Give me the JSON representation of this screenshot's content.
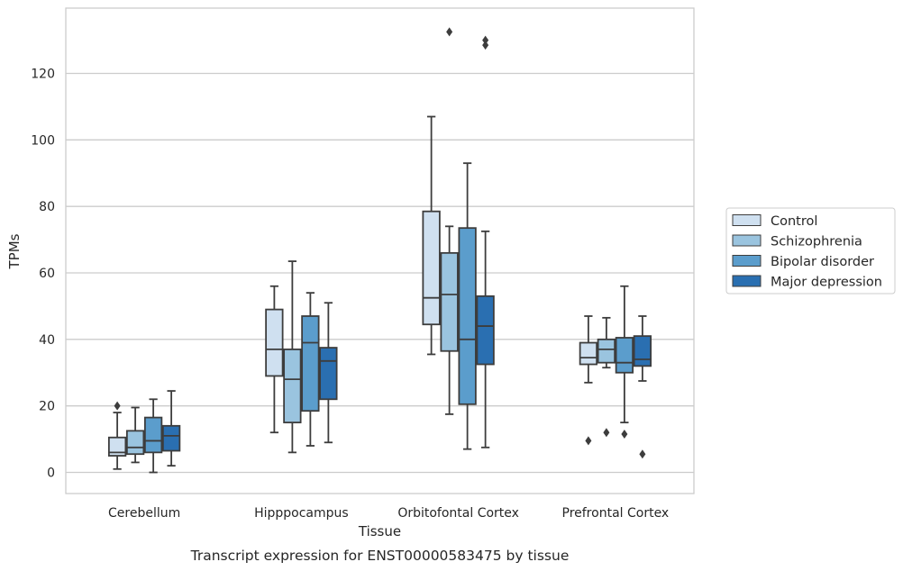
{
  "chart_data": {
    "type": "boxplot",
    "title": "",
    "xlabel": "Tissue",
    "ylabel": "TPMs",
    "caption": "Transcript expression for ENST00000583475 by tissue",
    "ylim": [
      -6.5,
      139
    ],
    "yticks": [
      0,
      20,
      40,
      60,
      80,
      100,
      120
    ],
    "grid": "horizontal",
    "legend_position": "right",
    "categories": [
      "Cerebellum",
      "Hipppocampus",
      "Orbitofontal Cortex",
      "Prefrontal Cortex"
    ],
    "series": [
      {
        "name": "Control",
        "color": "#cfe0f0",
        "boxes": [
          {
            "whislo": 1,
            "q1": 5,
            "med": 6,
            "q3": 10.5,
            "whishi": 18,
            "fliers": [
              20
            ]
          },
          {
            "whislo": 12,
            "q1": 29,
            "med": 37,
            "q3": 49,
            "whishi": 56,
            "fliers": []
          },
          {
            "whislo": 35.5,
            "q1": 44.5,
            "med": 52.5,
            "q3": 78.5,
            "whishi": 107,
            "fliers": []
          },
          {
            "whislo": 27,
            "q1": 32.5,
            "med": 34.5,
            "q3": 39,
            "whishi": 47,
            "fliers": [
              9.5
            ]
          }
        ]
      },
      {
        "name": "Schizophrenia",
        "color": "#9ac4df",
        "boxes": [
          {
            "whislo": 3,
            "q1": 5.5,
            "med": 7.5,
            "q3": 12.5,
            "whishi": 19.5,
            "fliers": []
          },
          {
            "whislo": 6,
            "q1": 15,
            "med": 28,
            "q3": 37,
            "whishi": 63.5,
            "fliers": []
          },
          {
            "whislo": 17.5,
            "q1": 36.5,
            "med": 53.5,
            "q3": 66,
            "whishi": 74,
            "fliers": [
              132.5
            ]
          },
          {
            "whislo": 31.5,
            "q1": 33,
            "med": 37,
            "q3": 40,
            "whishi": 46.5,
            "fliers": [
              12
            ]
          }
        ]
      },
      {
        "name": "Bipolar disorder",
        "color": "#5b9dcc",
        "boxes": [
          {
            "whislo": 0,
            "q1": 6,
            "med": 9.5,
            "q3": 16.5,
            "whishi": 22,
            "fliers": []
          },
          {
            "whislo": 8,
            "q1": 18.5,
            "med": 39,
            "q3": 47,
            "whishi": 54,
            "fliers": []
          },
          {
            "whislo": 7,
            "q1": 20.5,
            "med": 40,
            "q3": 73.5,
            "whishi": 93,
            "fliers": []
          },
          {
            "whislo": 15,
            "q1": 30,
            "med": 33,
            "q3": 40.5,
            "whishi": 56,
            "fliers": [
              11.5
            ]
          }
        ]
      },
      {
        "name": "Major depression",
        "color": "#2a6fb1",
        "boxes": [
          {
            "whislo": 2,
            "q1": 6.5,
            "med": 11,
            "q3": 14,
            "whishi": 24.5,
            "fliers": []
          },
          {
            "whislo": 9,
            "q1": 22,
            "med": 33.5,
            "q3": 37.5,
            "whishi": 51,
            "fliers": []
          },
          {
            "whislo": 7.5,
            "q1": 32.5,
            "med": 44,
            "q3": 53,
            "whishi": 72.5,
            "fliers": [
              128.5,
              130
            ]
          },
          {
            "whislo": 27.5,
            "q1": 32,
            "med": 34,
            "q3": 41,
            "whishi": 47,
            "fliers": [
              5.5
            ]
          }
        ]
      }
    ]
  }
}
